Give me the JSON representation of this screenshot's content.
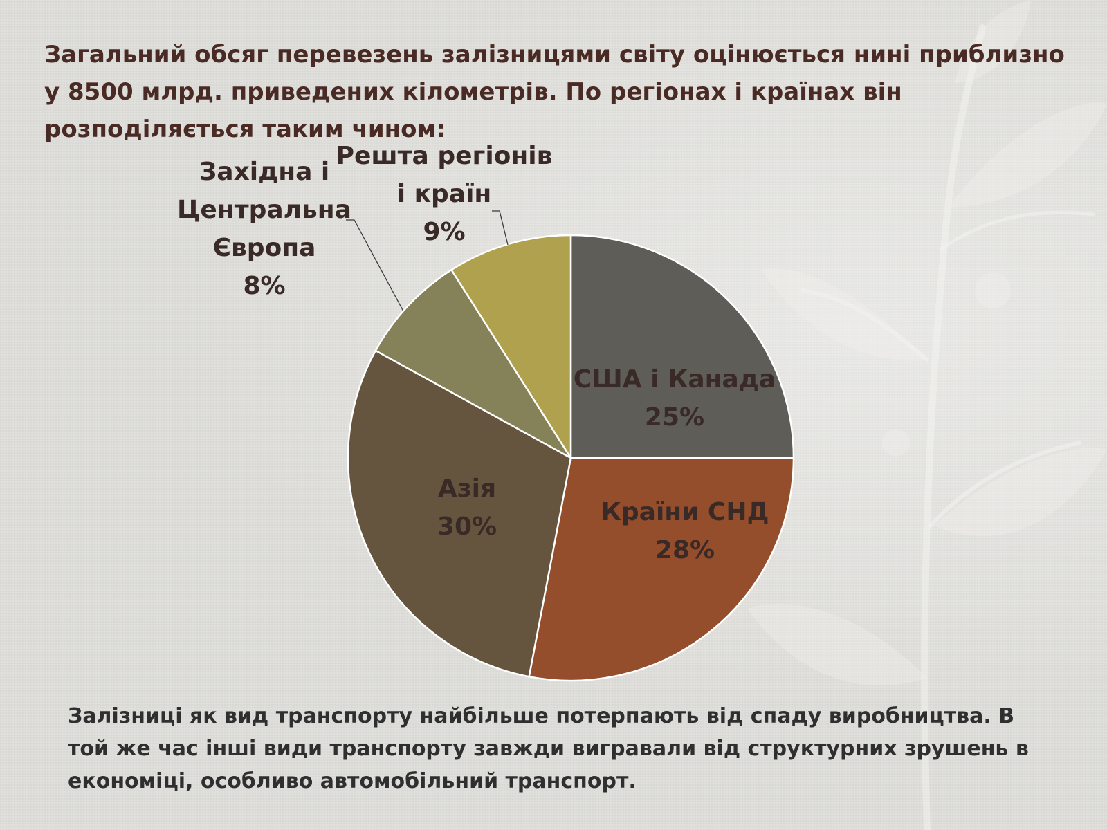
{
  "title": "Загальний обсяг перевезень залізницями світу оцінюється нині приблизно у 8500 млрд. приведених кілометрів. По регіонах і країнах він розподіляється таким чином:",
  "footer": "Залізниці як вид транспорту найбільше потерпають від спаду виробництва. В той же час інші види транспорту завжди вигравали від структурних зрушень в економіці, особливо автомобільний транспорт.",
  "chart_data": {
    "type": "pie",
    "start": "top",
    "direction": "clockwise",
    "slices": [
      {
        "label": "США і Канада",
        "label_lines": [
          "США і Канада"
        ],
        "value": 25,
        "value_label": "25%",
        "color": "#5e5d58",
        "text_color": "#3a2a27"
      },
      {
        "label": "Країни СНД",
        "label_lines": [
          "Країни СНД"
        ],
        "value": 28,
        "value_label": "28%",
        "color": "#954e2c",
        "text_color": "#3a2a27"
      },
      {
        "label": "Азія",
        "label_lines": [
          "Азія"
        ],
        "value": 30,
        "value_label": "30%",
        "color": "#65553e",
        "text_color": "#3a2a27"
      },
      {
        "label": "Західна і Центральна Європа",
        "label_lines": [
          "Західна і",
          "Центральна",
          "Європа"
        ],
        "value": 8,
        "value_label": "8%",
        "color": "#858158",
        "text_color": "#3a2a27"
      },
      {
        "label": "Решта регіонів і країн",
        "label_lines": [
          "Решта регіонів",
          "і країн"
        ],
        "value": 9,
        "value_label": "9%",
        "color": "#b0a14f",
        "text_color": "#3a2a27"
      }
    ]
  }
}
